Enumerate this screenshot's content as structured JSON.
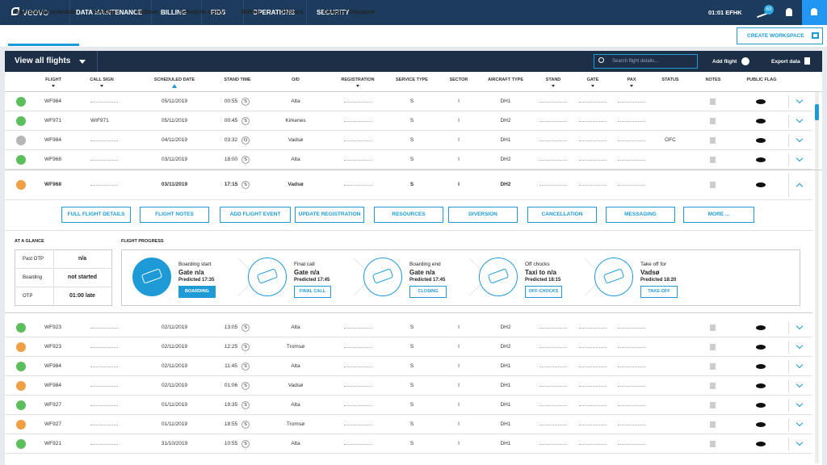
{
  "nav": {
    "logo": "veovo",
    "menu": [
      "DATA MAINTENANCE",
      "BILLING",
      "FIDS",
      "OPERATIONS",
      "SECURITY"
    ],
    "clock": "01:01 EFHK",
    "badge": "63"
  },
  "tabs": {
    "items": [
      "Operational schedule",
      "Arr/Dep",
      "Int/Dom",
      "Schedule query",
      "Billing",
      "Debtors",
      "Charge / Discount"
    ],
    "active": 0,
    "button": "CREATE WORKSPACE"
  },
  "toolbar": {
    "view": "View all flights",
    "search": "Search flight details...",
    "add": "Add flight",
    "export": "Export data"
  },
  "columns": [
    "FLIGHT",
    "CALL SIGN",
    "SCHEDULED DATE",
    "STAND TIME",
    "O/D",
    "REGISTRATION",
    "SERVICE TYPE",
    "SECTOR",
    "AIRCRAFT TYPE",
    "STAND",
    "GATE",
    "PAX",
    "STATUS",
    "NOTES",
    "PUBLIC FLAG"
  ],
  "rows": [
    {
      "color": "#5cbf5c",
      "flight": "WF984",
      "callsign": null,
      "date": "05/11/2019",
      "time": "00:55",
      "tag": "S",
      "od": "Alta",
      "service": "S",
      "sector": "I",
      "aircraft": "DH1",
      "status": null
    },
    {
      "color": "#5cbf5c",
      "flight": "WF971",
      "callsign": "WIF971",
      "date": "05/11/2019",
      "time": "00:45",
      "tag": "S",
      "od": "Kirkenes",
      "service": "S",
      "sector": "I",
      "aircraft": "DH2",
      "status": null
    },
    {
      "color": "#b5b5b5",
      "flight": "WF984",
      "callsign": null,
      "date": "04/11/2019",
      "time": "03:32",
      "tag": "O",
      "od": "Vadsø",
      "service": "S",
      "sector": "I",
      "aircraft": "DH1",
      "status": "OFC"
    },
    {
      "color": "#5cbf5c",
      "flight": "WF968",
      "callsign": null,
      "date": "03/11/2019",
      "time": "18:00",
      "tag": "S",
      "od": "Alta",
      "service": "S",
      "sector": "I",
      "aircraft": "DH2",
      "status": null
    },
    {
      "color": "#f0a044",
      "flight": "WF968",
      "callsign": null,
      "date": "03/11/2019",
      "time": "17:15",
      "tag": "S",
      "od": "Vadsø",
      "service": "S",
      "sector": "I",
      "aircraft": "DH2",
      "status": null,
      "expanded": true
    },
    {
      "color": "#5cbf5c",
      "flight": "WF923",
      "callsign": null,
      "date": "02/11/2019",
      "time": "13:05",
      "tag": "S",
      "od": "Alta",
      "service": "S",
      "sector": "I",
      "aircraft": "DH2",
      "status": null
    },
    {
      "color": "#f0a044",
      "flight": "WF923",
      "callsign": null,
      "date": "02/11/2019",
      "time": "12:25",
      "tag": "S",
      "od": "Tromsø",
      "service": "S",
      "sector": "I",
      "aircraft": "DH2",
      "status": null
    },
    {
      "color": "#5cbf5c",
      "flight": "WF984",
      "callsign": null,
      "date": "02/11/2019",
      "time": "11:45",
      "tag": "S",
      "od": "Alta",
      "service": "S",
      "sector": "I",
      "aircraft": "DH1",
      "status": null
    },
    {
      "color": "#f0a044",
      "flight": "WF984",
      "callsign": null,
      "date": "02/11/2019",
      "time": "01:06",
      "tag": "S",
      "od": "Vadsø",
      "service": "S",
      "sector": "I",
      "aircraft": "DH1",
      "status": null
    },
    {
      "color": "#5cbf5c",
      "flight": "WF927",
      "callsign": null,
      "date": "01/11/2019",
      "time": "19:35",
      "tag": "S",
      "od": "Alta",
      "service": "S",
      "sector": "I",
      "aircraft": "DH1",
      "status": null
    },
    {
      "color": "#f0a044",
      "flight": "WF927",
      "callsign": null,
      "date": "01/11/2019",
      "time": "18:55",
      "tag": "S",
      "od": "Tromsø",
      "service": "S",
      "sector": "I",
      "aircraft": "DH1",
      "status": null
    },
    {
      "color": "#5cbf5c",
      "flight": "WF921",
      "callsign": null,
      "date": "31/10/2019",
      "time": "10:55",
      "tag": "S",
      "od": "Alta",
      "service": "S",
      "sector": "I",
      "aircraft": "DH1",
      "status": null
    }
  ],
  "detail": {
    "actions": [
      "FULL FLIGHT DETAILS",
      "FLIGHT NOTES",
      "ADD FLIGHT EVENT",
      "UPDATE REGISTRATION",
      "RESOURCES",
      "DIVERSION",
      "CANCELLATION",
      "MESSAGING",
      "MORE ..."
    ],
    "glance": {
      "title": "AT A GLANCE",
      "items": [
        {
          "label": "Past OTP",
          "value": "n/a"
        },
        {
          "label": "Boarding",
          "value": "not started"
        },
        {
          "label": "OTP",
          "value": "01:00 late"
        }
      ]
    },
    "progress": {
      "title": "FLIGHT PROGRESS",
      "steps": [
        {
          "title": "Boarding start",
          "main": "Gate n/a",
          "predicted": "Predicted 17:35",
          "button": "BOARDING",
          "active": true
        },
        {
          "title": "Final call",
          "main": "Gate n/a",
          "predicted": "Predicted 17:45",
          "button": "FINAL CALL",
          "active": false
        },
        {
          "title": "Boarding end",
          "main": "Gate n/a",
          "predicted": "Predicted 17:45",
          "button": "CLOSING",
          "active": false
        },
        {
          "title": "Off chocks",
          "main": "Taxi to n/a",
          "predicted": "Predicted 18:15",
          "button": "OFF-CHOCKS",
          "active": false
        },
        {
          "title": "Take off for",
          "main": "Vadsø",
          "predicted": "Predicted 18:20",
          "button": "TAKE-OFF",
          "active": false
        }
      ]
    }
  }
}
